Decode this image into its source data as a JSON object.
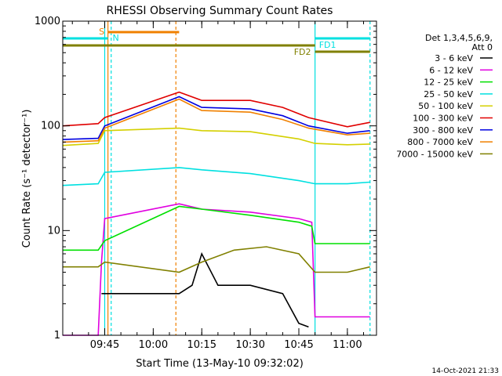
{
  "chart_data": {
    "type": "line",
    "title": "RHESSI Observing Summary Count Rates",
    "xlabel": "Start Time (13-May-10 09:32:02)",
    "ylabel": "Count Rate (s⁻¹ detector⁻¹)",
    "x_range": [
      "09:32:02",
      "11:09"
    ],
    "x_ticks": [
      "09:45",
      "10:00",
      "10:15",
      "10:30",
      "10:45",
      "11:00"
    ],
    "y_scale": "log",
    "ylim": [
      1,
      1000
    ],
    "y_ticks": [
      "1",
      "10",
      "100",
      "1000"
    ],
    "grid": false,
    "legend": {
      "position": "right",
      "header": [
        "Det 1,3,4,5,6,9,",
        "Att 0"
      ],
      "entries": [
        {
          "label": "3 - 6 keV",
          "color": "#000000"
        },
        {
          "label": "6 - 12 keV",
          "color": "#e000e0"
        },
        {
          "label": "12 - 25 keV",
          "color": "#00e000"
        },
        {
          "label": "25 - 50 keV",
          "color": "#00e0e0"
        },
        {
          "label": "50 - 100 keV",
          "color": "#d4d000"
        },
        {
          "label": "100 - 300 keV",
          "color": "#e00000"
        },
        {
          "label": "300 - 800 keV",
          "color": "#0000e0"
        },
        {
          "label": "800 - 7000 keV",
          "color": "#f08000"
        },
        {
          "label": "7000 - 15000 keV",
          "color": "#808000"
        }
      ]
    },
    "gaps": [
      [
        "09:46",
        "10:08"
      ]
    ],
    "series": [
      {
        "name": "3 - 6 keV",
        "color": "#000000",
        "x": [
          "09:44",
          "10:08",
          "10:12",
          "10:15",
          "10:20",
          "10:30",
          "10:40",
          "10:45",
          "10:48"
        ],
        "y": [
          2.5,
          2.5,
          3,
          6,
          3,
          3,
          2.5,
          1.3,
          1.2
        ]
      },
      {
        "name": "6 - 12 keV",
        "color": "#e000e0",
        "x": [
          "09:32:02",
          "09:43",
          "09:44",
          "09:45",
          "10:08",
          "10:15",
          "10:30",
          "10:45",
          "10:49",
          "10:50",
          "11:00",
          "11:07"
        ],
        "y": [
          1,
          1,
          5,
          13,
          18,
          16,
          15,
          13,
          12,
          1.5,
          1.5,
          1.5
        ]
      },
      {
        "name": "12 - 25 keV",
        "color": "#00e000",
        "x": [
          "09:32:02",
          "09:43",
          "09:45",
          "10:08",
          "10:15",
          "10:30",
          "10:45",
          "10:49",
          "10:50",
          "11:00",
          "11:07"
        ],
        "y": [
          6.5,
          6.5,
          8,
          17,
          16,
          14,
          12,
          11,
          7.5,
          7.5,
          7.5
        ]
      },
      {
        "name": "25 - 50 keV",
        "color": "#00e0e0",
        "x": [
          "09:32:02",
          "09:43",
          "09:45",
          "10:08",
          "10:15",
          "10:30",
          "10:45",
          "10:50",
          "11:00",
          "11:07"
        ],
        "y": [
          27,
          28,
          36,
          40,
          38,
          35,
          30,
          28,
          28,
          29
        ]
      },
      {
        "name": "50 - 100 keV",
        "color": "#d4d000",
        "x": [
          "09:32:02",
          "09:43",
          "09:45",
          "10:08",
          "10:15",
          "10:30",
          "10:45",
          "10:50",
          "11:00",
          "11:07"
        ],
        "y": [
          65,
          68,
          90,
          95,
          90,
          88,
          75,
          68,
          66,
          67
        ]
      },
      {
        "name": "100 - 300 keV",
        "color": "#e00000",
        "x": [
          "09:32:02",
          "09:43",
          "09:45",
          "10:08",
          "10:15",
          "10:30",
          "10:40",
          "10:48",
          "11:00",
          "11:07"
        ],
        "y": [
          100,
          105,
          120,
          210,
          175,
          175,
          150,
          120,
          98,
          108
        ]
      },
      {
        "name": "300 - 800 keV",
        "color": "#0000e0",
        "x": [
          "09:32:02",
          "09:43",
          "09:45",
          "10:08",
          "10:15",
          "10:30",
          "10:40",
          "10:48",
          "11:00",
          "11:07"
        ],
        "y": [
          74,
          76,
          100,
          190,
          150,
          145,
          125,
          100,
          85,
          90
        ]
      },
      {
        "name": "800 - 7000 keV",
        "color": "#f08000",
        "x": [
          "09:32:02",
          "09:43",
          "09:45",
          "10:08",
          "10:15",
          "10:30",
          "10:40",
          "10:48",
          "11:00",
          "11:07"
        ],
        "y": [
          70,
          72,
          95,
          180,
          140,
          135,
          115,
          95,
          82,
          85
        ]
      },
      {
        "name": "7000 - 15000 keV",
        "color": "#808000",
        "x": [
          "09:32:02",
          "09:43",
          "09:45",
          "10:08",
          "10:15",
          "10:25",
          "10:35",
          "10:45",
          "10:50",
          "11:00",
          "11:07"
        ],
        "y": [
          4.5,
          4.5,
          5,
          4,
          5,
          6.5,
          7,
          6,
          4,
          4,
          4.5
        ]
      }
    ],
    "annotations": [
      {
        "label": "S",
        "color": "#f08000",
        "x_start": "09:46",
        "x_end": "10:08"
      },
      {
        "label": "N",
        "color": "#00e0e0",
        "x_start": "09:32:02",
        "x_end": "09:46"
      },
      {
        "label": "FD1",
        "color": "#00e0e0",
        "x_start": "10:50",
        "x_end": "11:07"
      },
      {
        "label": "FD2",
        "color": "#808000",
        "x_start": "09:32:02",
        "x_end": "11:07"
      }
    ],
    "vertical_markers": [
      {
        "x": "09:45",
        "color": "#00e0e0",
        "style": "solid"
      },
      {
        "x": "09:46",
        "color": "#f08000",
        "style": "solid"
      },
      {
        "x": "09:47",
        "color": "#00e0e0",
        "style": "dashed"
      },
      {
        "x": "10:07",
        "color": "#f08000",
        "style": "dashed"
      },
      {
        "x": "10:50",
        "color": "#00e0e0",
        "style": "solid"
      },
      {
        "x": "11:07",
        "color": "#00e0e0",
        "style": "dashed"
      }
    ]
  },
  "footer_timestamp": "14-Oct-2021 21:33"
}
